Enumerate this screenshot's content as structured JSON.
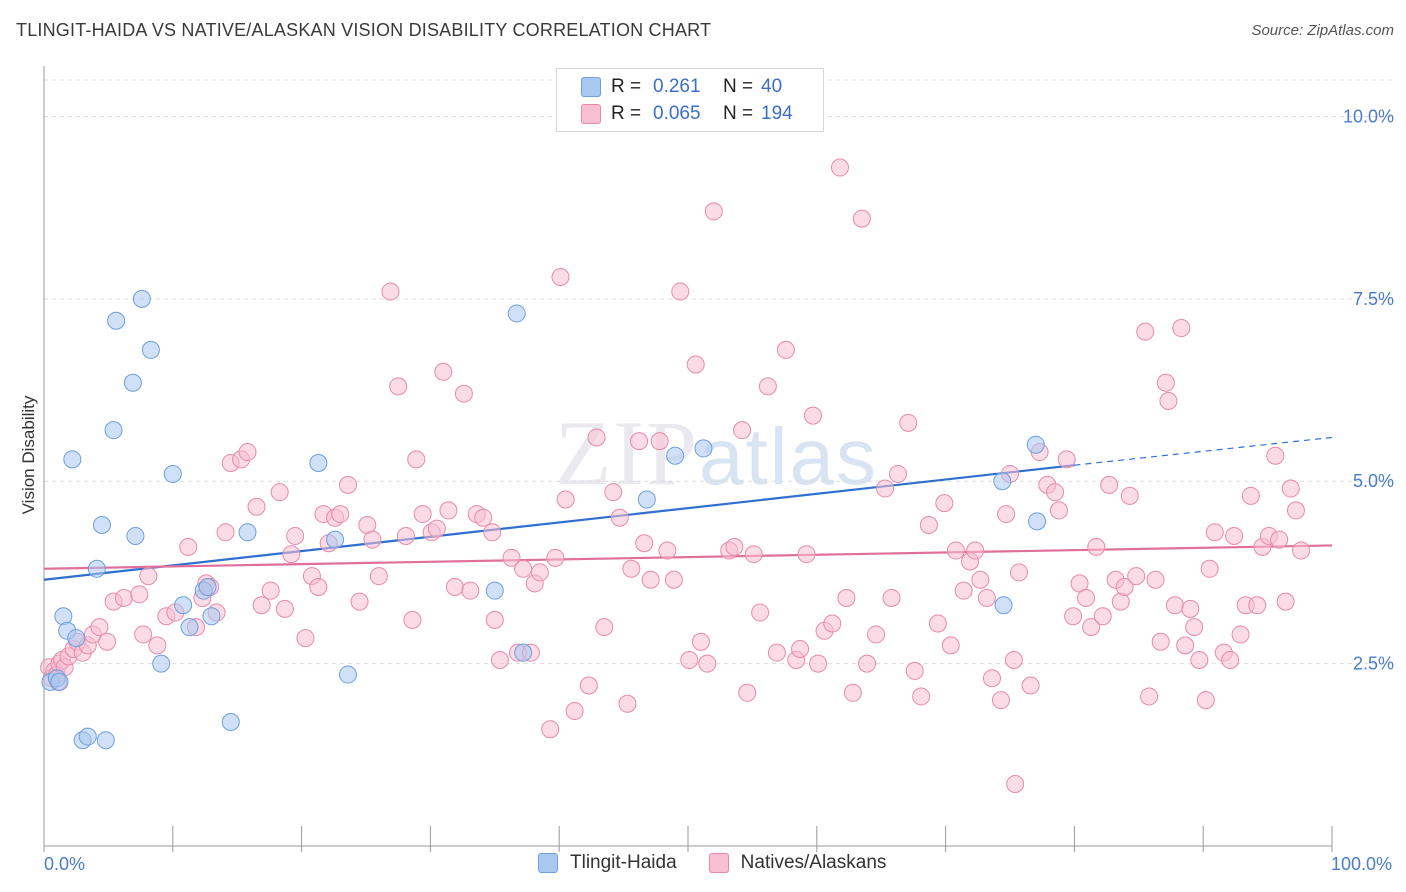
{
  "header": {
    "title": "TLINGIT-HAIDA VS NATIVE/ALASKAN VISION DISABILITY CORRELATION CHART",
    "source": "Source: ZipAtlas.com"
  },
  "watermark": {
    "zip": "ZIP",
    "atlas": "atlas"
  },
  "legend": {
    "rows": [
      {
        "r_label": "R =",
        "r_value": "0.261",
        "n_label": "N =",
        "n_value": "40",
        "color": "#a9c8f0",
        "border": "#6f9fdc"
      },
      {
        "r_label": "R =",
        "r_value": "0.065",
        "n_label": "N =",
        "n_value": "194",
        "color": "#f7bfd1",
        "border": "#e88aaa"
      }
    ]
  },
  "bottom_legend": {
    "items": [
      {
        "label": "Tlingit-Haida",
        "color": "#a9c8f0",
        "border": "#6f9fdc"
      },
      {
        "label": "Natives/Alaskans",
        "color": "#f7bfd1",
        "border": "#e88aaa"
      }
    ]
  },
  "chart_data": {
    "type": "scatter",
    "title": "TLINGIT-HAIDA VS NATIVE/ALASKAN VISION DISABILITY CORRELATION CHART",
    "xlabel": "",
    "ylabel": "Vision Disability",
    "xlim": [
      0,
      100
    ],
    "ylim": [
      0,
      10.5
    ],
    "x_tick_labels": [
      "0.0%",
      "100.0%"
    ],
    "y_ticks": [
      2.5,
      5.0,
      7.5,
      10.0
    ],
    "y_tick_labels": [
      "2.5%",
      "5.0%",
      "7.5%",
      "10.0%"
    ],
    "grid": "horizontal dashed",
    "legend_position": "top-center",
    "series": [
      {
        "name": "Tlingit-Haida",
        "color": "#a9c8f0",
        "stroke": "#6f9fdc",
        "trend": {
          "x0": 0,
          "y0": 3.65,
          "x1": 80,
          "y1": 5.22,
          "dash_to": 100,
          "dash_y": 5.6,
          "color": "#2f6fd0"
        },
        "points": [
          [
            0.5,
            2.25
          ],
          [
            1,
            2.3
          ],
          [
            1.2,
            2.25
          ],
          [
            1.5,
            3.15
          ],
          [
            1.8,
            2.95
          ],
          [
            2.2,
            5.3
          ],
          [
            2.5,
            2.85
          ],
          [
            3,
            1.45
          ],
          [
            3.4,
            1.5
          ],
          [
            4.1,
            3.8
          ],
          [
            4.5,
            4.4
          ],
          [
            4.8,
            1.45
          ],
          [
            5.4,
            5.7
          ],
          [
            5.6,
            7.2
          ],
          [
            6.9,
            6.35
          ],
          [
            7.1,
            4.25
          ],
          [
            7.6,
            7.5
          ],
          [
            8.3,
            6.8
          ],
          [
            9.1,
            2.5
          ],
          [
            10,
            5.1
          ],
          [
            10.8,
            3.3
          ],
          [
            11.3,
            3.0
          ],
          [
            12.4,
            3.5
          ],
          [
            12.7,
            3.55
          ],
          [
            13,
            3.15
          ],
          [
            14.5,
            1.7
          ],
          [
            15.8,
            4.3
          ],
          [
            21.3,
            5.25
          ],
          [
            22.6,
            4.2
          ],
          [
            23.6,
            2.35
          ],
          [
            35,
            3.5
          ],
          [
            37.2,
            2.65
          ],
          [
            36.7,
            7.3
          ],
          [
            46.8,
            4.75
          ],
          [
            49,
            5.35
          ],
          [
            51.2,
            5.45
          ],
          [
            74.4,
            5.0
          ],
          [
            74.5,
            3.3
          ],
          [
            77,
            5.5
          ],
          [
            77.1,
            4.45
          ]
        ]
      },
      {
        "name": "Natives/Alaskans",
        "color": "#f7bfd1",
        "stroke": "#e88aaa",
        "trend": {
          "x0": 0,
          "y0": 3.8,
          "x1": 100,
          "y1": 4.12,
          "color": "#e0709a"
        },
        "points": [
          [
            0.4,
            2.45
          ],
          [
            0.6,
            2.3
          ],
          [
            0.8,
            2.4
          ],
          [
            1,
            2.35
          ],
          [
            1.1,
            2.25
          ],
          [
            1.2,
            2.5
          ],
          [
            1.4,
            2.55
          ],
          [
            1.6,
            2.45
          ],
          [
            1.9,
            2.6
          ],
          [
            2.3,
            2.7
          ],
          [
            2.6,
            2.8
          ],
          [
            3,
            2.65
          ],
          [
            3.4,
            2.75
          ],
          [
            3.8,
            2.9
          ],
          [
            4.3,
            3.0
          ],
          [
            4.9,
            2.8
          ],
          [
            5.4,
            3.35
          ],
          [
            6.2,
            3.4
          ],
          [
            7.4,
            3.45
          ],
          [
            7.7,
            2.9
          ],
          [
            8.1,
            3.7
          ],
          [
            8.8,
            2.75
          ],
          [
            9.5,
            3.15
          ],
          [
            10.2,
            3.2
          ],
          [
            11.2,
            4.1
          ],
          [
            11.8,
            3.0
          ],
          [
            12.3,
            3.4
          ],
          [
            12.6,
            3.6
          ],
          [
            12.9,
            3.55
          ],
          [
            13.4,
            3.2
          ],
          [
            14.1,
            4.3
          ],
          [
            14.5,
            5.25
          ],
          [
            15.3,
            5.3
          ],
          [
            15.8,
            5.4
          ],
          [
            16.5,
            4.65
          ],
          [
            16.9,
            3.3
          ],
          [
            17.6,
            3.5
          ],
          [
            18.3,
            4.85
          ],
          [
            18.7,
            3.25
          ],
          [
            19.2,
            4.0
          ],
          [
            19.5,
            4.25
          ],
          [
            20.3,
            2.85
          ],
          [
            20.8,
            3.7
          ],
          [
            21.3,
            3.55
          ],
          [
            21.7,
            4.55
          ],
          [
            22.1,
            4.15
          ],
          [
            22.6,
            4.5
          ],
          [
            23,
            4.55
          ],
          [
            23.6,
            4.95
          ],
          [
            24.5,
            3.35
          ],
          [
            25.1,
            4.4
          ],
          [
            25.5,
            4.2
          ],
          [
            26,
            3.7
          ],
          [
            26.9,
            7.6
          ],
          [
            27.5,
            6.3
          ],
          [
            28.1,
            4.25
          ],
          [
            28.6,
            3.1
          ],
          [
            28.9,
            5.3
          ],
          [
            29.4,
            4.55
          ],
          [
            30.1,
            4.3
          ],
          [
            30.5,
            4.35
          ],
          [
            31,
            6.5
          ],
          [
            31.4,
            4.6
          ],
          [
            31.9,
            3.55
          ],
          [
            32.6,
            6.2
          ],
          [
            33.1,
            3.5
          ],
          [
            33.6,
            4.55
          ],
          [
            34.1,
            4.5
          ],
          [
            34.8,
            4.3
          ],
          [
            35,
            3.1
          ],
          [
            35.4,
            2.55
          ],
          [
            36.3,
            3.95
          ],
          [
            36.8,
            2.65
          ],
          [
            37.2,
            3.8
          ],
          [
            37.8,
            2.65
          ],
          [
            38.1,
            3.6
          ],
          [
            38.5,
            3.75
          ],
          [
            39.3,
            1.6
          ],
          [
            39.7,
            3.95
          ],
          [
            40.1,
            7.8
          ],
          [
            40.5,
            4.75
          ],
          [
            41.2,
            1.85
          ],
          [
            42.3,
            2.2
          ],
          [
            42.9,
            5.6
          ],
          [
            43.5,
            3.0
          ],
          [
            44.2,
            4.85
          ],
          [
            44.7,
            4.5
          ],
          [
            45.3,
            1.95
          ],
          [
            45.6,
            3.8
          ],
          [
            46.2,
            5.55
          ],
          [
            46.6,
            4.15
          ],
          [
            47.1,
            3.65
          ],
          [
            47.8,
            5.55
          ],
          [
            48.4,
            4.05
          ],
          [
            48.9,
            3.65
          ],
          [
            49.4,
            7.6
          ],
          [
            50.1,
            2.55
          ],
          [
            50.6,
            6.6
          ],
          [
            51,
            2.8
          ],
          [
            51.5,
            2.5
          ],
          [
            52,
            8.7
          ],
          [
            53.2,
            4.05
          ],
          [
            53.6,
            4.1
          ],
          [
            54.2,
            5.7
          ],
          [
            54.6,
            2.1
          ],
          [
            55.1,
            4.0
          ],
          [
            55.6,
            3.2
          ],
          [
            56.2,
            6.3
          ],
          [
            56.9,
            2.65
          ],
          [
            57.6,
            6.8
          ],
          [
            58.4,
            2.55
          ],
          [
            58.7,
            2.7
          ],
          [
            59.2,
            4.0
          ],
          [
            59.7,
            5.9
          ],
          [
            60.1,
            2.5
          ],
          [
            60.6,
            2.95
          ],
          [
            61.2,
            3.05
          ],
          [
            61.8,
            9.3
          ],
          [
            62.3,
            3.4
          ],
          [
            62.8,
            2.1
          ],
          [
            63.5,
            8.6
          ],
          [
            63.9,
            2.5
          ],
          [
            64.6,
            2.9
          ],
          [
            65.3,
            4.9
          ],
          [
            65.8,
            3.4
          ],
          [
            66.3,
            5.1
          ],
          [
            67.1,
            5.8
          ],
          [
            67.6,
            2.4
          ],
          [
            68.1,
            2.05
          ],
          [
            68.7,
            4.4
          ],
          [
            69.4,
            3.05
          ],
          [
            69.9,
            4.7
          ],
          [
            70.4,
            2.75
          ],
          [
            70.8,
            4.05
          ],
          [
            71.4,
            3.5
          ],
          [
            71.9,
            3.9
          ],
          [
            72.3,
            4.05
          ],
          [
            72.7,
            3.65
          ],
          [
            73.2,
            3.4
          ],
          [
            73.6,
            2.3
          ],
          [
            74.3,
            2.0
          ],
          [
            74.7,
            4.55
          ],
          [
            75,
            5.1
          ],
          [
            75.3,
            2.55
          ],
          [
            75.7,
            3.75
          ],
          [
            75.4,
            0.85
          ],
          [
            76.6,
            2.2
          ],
          [
            77.3,
            5.4
          ],
          [
            77.9,
            4.95
          ],
          [
            78.5,
            4.85
          ],
          [
            78.8,
            4.6
          ],
          [
            79.4,
            5.3
          ],
          [
            79.9,
            3.15
          ],
          [
            80.4,
            3.6
          ],
          [
            80.9,
            3.4
          ],
          [
            81.3,
            3.0
          ],
          [
            81.7,
            4.1
          ],
          [
            82.2,
            3.15
          ],
          [
            82.7,
            4.95
          ],
          [
            83.2,
            3.65
          ],
          [
            83.6,
            3.35
          ],
          [
            83.9,
            3.55
          ],
          [
            84.3,
            4.8
          ],
          [
            84.8,
            3.7
          ],
          [
            85.5,
            7.05
          ],
          [
            85.8,
            2.05
          ],
          [
            86.3,
            3.65
          ],
          [
            86.7,
            2.8
          ],
          [
            87.1,
            6.35
          ],
          [
            87.3,
            6.1
          ],
          [
            87.8,
            3.3
          ],
          [
            88.3,
            7.1
          ],
          [
            88.6,
            2.75
          ],
          [
            89,
            3.25
          ],
          [
            89.3,
            3.0
          ],
          [
            89.7,
            2.55
          ],
          [
            90.2,
            2.0
          ],
          [
            90.5,
            3.8
          ],
          [
            90.9,
            4.3
          ],
          [
            91.6,
            2.65
          ],
          [
            92.1,
            2.55
          ],
          [
            92.4,
            4.25
          ],
          [
            92.9,
            2.9
          ],
          [
            93.3,
            3.3
          ],
          [
            93.7,
            4.8
          ],
          [
            94.2,
            3.3
          ],
          [
            94.6,
            4.1
          ],
          [
            95.1,
            4.25
          ],
          [
            95.6,
            5.35
          ],
          [
            95.9,
            4.2
          ],
          [
            96.4,
            3.35
          ],
          [
            96.8,
            4.9
          ],
          [
            97.2,
            4.6
          ],
          [
            97.6,
            4.05
          ]
        ]
      }
    ]
  }
}
